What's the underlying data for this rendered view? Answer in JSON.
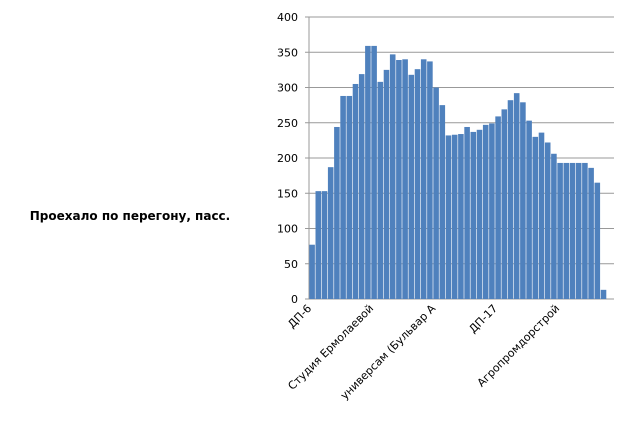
{
  "chart_data": {
    "type": "bar",
    "y_label": "Проехало по перегону, пасс.",
    "categories": [
      "ДП-6",
      null,
      null,
      null,
      null,
      null,
      null,
      null,
      null,
      null,
      "Студия Ермолаевой",
      null,
      null,
      null,
      null,
      null,
      null,
      null,
      null,
      null,
      "универсам (Бульвар А",
      null,
      null,
      null,
      null,
      null,
      null,
      null,
      null,
      null,
      "ДП-17",
      null,
      null,
      null,
      null,
      null,
      null,
      null,
      null,
      null,
      "Агропромдорстрой",
      null,
      null,
      null,
      null,
      null,
      null,
      null
    ],
    "values": [
      77,
      153,
      153,
      187,
      244,
      288,
      288,
      305,
      319,
      359,
      359,
      308,
      325,
      347,
      339,
      340,
      318,
      326,
      340,
      337,
      300,
      275,
      232,
      233,
      234,
      244,
      237,
      240,
      247,
      249,
      259,
      269,
      282,
      292,
      279,
      253,
      230,
      236,
      222,
      206,
      193,
      193,
      193,
      193,
      193,
      186,
      165,
      13
    ],
    "color": "#4f81bd",
    "ylim": [
      0,
      400
    ],
    "yticks": [
      0,
      50,
      100,
      150,
      200,
      250,
      300,
      350,
      400
    ],
    "grid": true
  }
}
